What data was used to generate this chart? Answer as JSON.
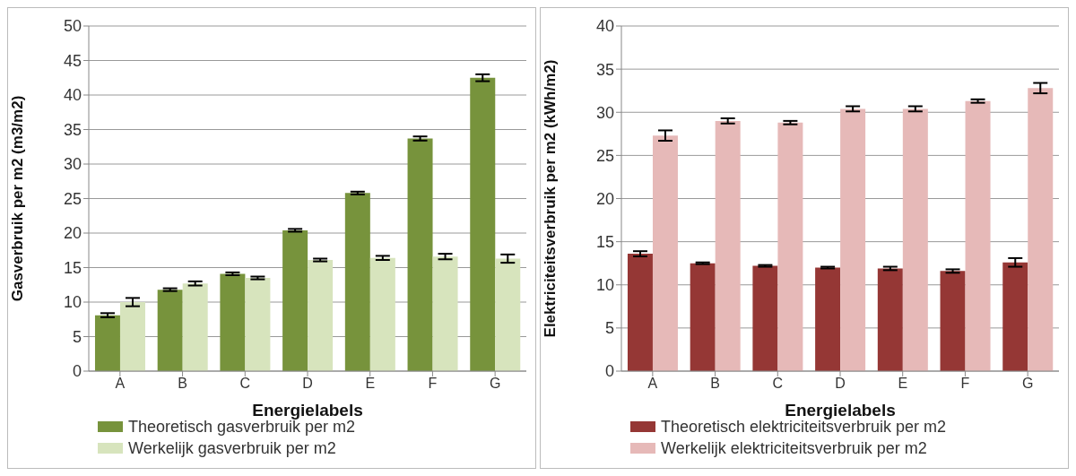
{
  "chart_data": [
    {
      "type": "bar",
      "xlabel": "Energielabels",
      "ylabel": "Gasverbruik per m2 (m3/m2)",
      "categories": [
        "A",
        "B",
        "C",
        "D",
        "E",
        "F",
        "G"
      ],
      "ylim": [
        0,
        50
      ],
      "yticks": [
        0,
        5,
        10,
        15,
        20,
        25,
        30,
        35,
        40,
        45,
        50
      ],
      "grid": "y",
      "legend": "bottom",
      "series": [
        {
          "name": "Theoretisch gasverbruik per m2",
          "color": "#77933c",
          "values": [
            8.1,
            11.8,
            14.1,
            20.4,
            25.8,
            33.7,
            42.5
          ],
          "errors": [
            0.3,
            0.2,
            0.2,
            0.2,
            0.2,
            0.3,
            0.5
          ]
        },
        {
          "name": "Werkelijk gasverbruik per m2",
          "color": "#d7e4bd",
          "values": [
            10.0,
            12.7,
            13.5,
            16.1,
            16.4,
            16.6,
            16.3
          ],
          "errors": [
            0.6,
            0.3,
            0.2,
            0.2,
            0.3,
            0.4,
            0.6
          ]
        }
      ]
    },
    {
      "type": "bar",
      "xlabel": "Energielabels",
      "ylabel": "Elektriciteitsverbruik per m2 (kWh/m2)",
      "categories": [
        "A",
        "B",
        "C",
        "D",
        "E",
        "F",
        "G"
      ],
      "ylim": [
        0,
        40
      ],
      "yticks": [
        0,
        5,
        10,
        15,
        20,
        25,
        30,
        35,
        40
      ],
      "grid": "y",
      "legend": "bottom",
      "series": [
        {
          "name": "Theoretisch elektriciteitsverbruik per m2",
          "color": "#953735",
          "values": [
            13.6,
            12.5,
            12.2,
            12.0,
            11.9,
            11.6,
            12.6
          ],
          "errors": [
            0.3,
            0.1,
            0.1,
            0.1,
            0.2,
            0.2,
            0.5
          ]
        },
        {
          "name": "Werkelijk elektriciteitsverbruik per m2",
          "color": "#e6b9b8",
          "values": [
            27.3,
            29.0,
            28.8,
            30.4,
            30.4,
            31.3,
            32.8
          ],
          "errors": [
            0.6,
            0.3,
            0.2,
            0.3,
            0.3,
            0.2,
            0.6
          ]
        }
      ]
    }
  ]
}
